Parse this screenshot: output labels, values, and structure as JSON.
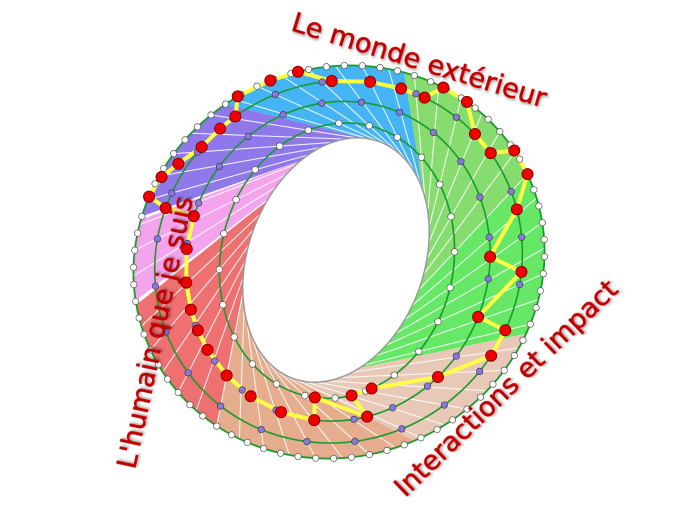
{
  "labels": {
    "top": "Le monde extérieur",
    "left": "L'humain que je suis",
    "right": "Interactions et impact"
  },
  "colors": {
    "label": "#c00000",
    "ring_line": "#1a9a2a",
    "path": "#ffff44",
    "node_red": "#ee0000",
    "node_purple": "#8877dd",
    "node_white": "#ffffff",
    "sectors": [
      "#8f78ea",
      "#45b4f4",
      "#86dc6e",
      "#66e866",
      "#e8c8b6",
      "#e5ad8e",
      "#ee7070",
      "#f4a4ec"
    ]
  }
}
